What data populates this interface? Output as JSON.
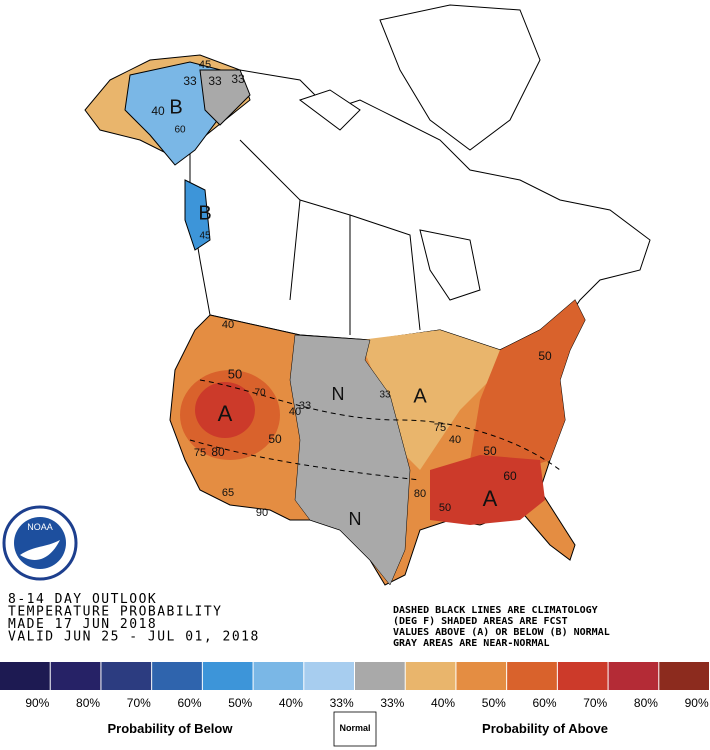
{
  "outlook": [
    "8-14 DAY OUTLOOK",
    "TEMPERATURE PROBABILITY",
    "MADE  17 JUN 2018",
    "VALID  JUN 25 - JUL 01, 2018"
  ],
  "notes": [
    "DASHED BLACK LINES ARE CLIMATOLOGY",
    "(DEG F) SHADED AREAS ARE FCST",
    "VALUES ABOVE (A) OR BELOW (B) NORMAL",
    "GRAY AREAS ARE NEAR-NORMAL"
  ],
  "logo": "NOAA",
  "map_labels": [
    "45",
    "33",
    "33",
    "33",
    "40",
    "B",
    "60",
    "B",
    "45",
    "40",
    "50",
    "70",
    "A",
    "40",
    "33",
    "50",
    "75",
    "80",
    "65",
    "90",
    "N",
    "N",
    "33",
    "A",
    "75",
    "40",
    "50",
    "60",
    "A",
    "80",
    "50",
    "50"
  ],
  "legend": {
    "items": [
      {
        "label": "90%",
        "color": "#1d1a52"
      },
      {
        "label": "80%",
        "color": "#262266"
      },
      {
        "label": "70%",
        "color": "#2c3c80"
      },
      {
        "label": "60%",
        "color": "#2f64ad"
      },
      {
        "label": "50%",
        "color": "#3d95d9"
      },
      {
        "label": "40%",
        "color": "#7ab7e6"
      },
      {
        "label": "33%",
        "color": "#a7cdef"
      },
      {
        "label": "33%",
        "color": "#a9a9a9"
      },
      {
        "label": "40%",
        "color": "#e9b56c"
      },
      {
        "label": "50%",
        "color": "#e48d42"
      },
      {
        "label": "60%",
        "color": "#d9622c"
      },
      {
        "label": "70%",
        "color": "#cc3a2a"
      },
      {
        "label": "80%",
        "color": "#b42b36"
      },
      {
        "label": "90%",
        "color": "#8c2b1e"
      }
    ],
    "below": "Probability of Below",
    "normal": "Normal",
    "above": "Probability of Above"
  }
}
